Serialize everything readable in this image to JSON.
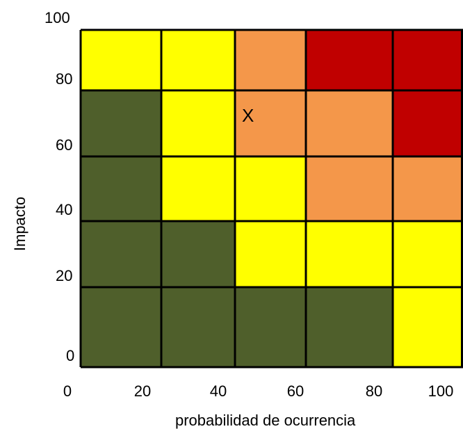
{
  "chart_data": {
    "type": "heatmap",
    "title": "",
    "xlabel": "probabilidad de ocurrencia",
    "ylabel": "Impacto",
    "x_tick_labels": [
      "0",
      "20",
      "40",
      "60",
      "80",
      "100"
    ],
    "y_tick_labels": [
      "100",
      "80",
      "60",
      "40",
      "20",
      "0"
    ],
    "xlim": [
      0,
      100
    ],
    "ylim": [
      0,
      100
    ],
    "grid": true,
    "colors": {
      "green": "#4f5f2b",
      "yellow": "#ffff00",
      "orange": "#f4974a",
      "red": "#c00000",
      "border": "#000000"
    },
    "rows": [
      [
        "yellow",
        "yellow",
        "orange",
        "red",
        "red"
      ],
      [
        "green",
        "yellow",
        "orange",
        "orange",
        "red"
      ],
      [
        "green",
        "yellow",
        "yellow",
        "orange",
        "orange"
      ],
      [
        "green",
        "green",
        "yellow",
        "yellow",
        "yellow"
      ],
      [
        "green",
        "green",
        "green",
        "green",
        "yellow"
      ]
    ],
    "annotations": [
      {
        "text": "X",
        "row": 1,
        "col": 2
      }
    ]
  }
}
